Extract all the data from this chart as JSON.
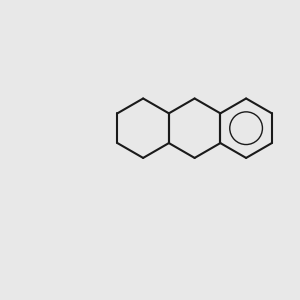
{
  "bg_color": "#e8e8e8",
  "bond_color": "#1a1a1a",
  "N_color": "#2222cc",
  "O_color": "#cc2222",
  "F_color": "#cc44cc",
  "NH_color": "#44aaaa",
  "lw": 1.5,
  "lw_aromatic": 1.0
}
